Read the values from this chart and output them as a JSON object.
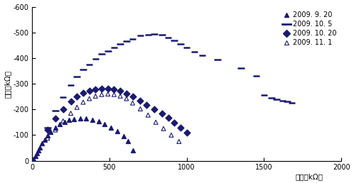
{
  "xlabel": "电阱（kΩ）",
  "ylabel": "电抗（kΩ）",
  "xlim": [
    0,
    2000
  ],
  "ylim": [
    0,
    -600
  ],
  "xticks": [
    0,
    500,
    1000,
    1500,
    2000
  ],
  "yticks": [
    0,
    -100,
    -200,
    -300,
    -400,
    -500,
    -600
  ],
  "background_color": "#ffffff",
  "color": "#1a1a6e",
  "series_9_20": {
    "label": "2009. 9. 20",
    "x": [
      10,
      20,
      30,
      40,
      50,
      65,
      80,
      100,
      120,
      150,
      180,
      210,
      240,
      270,
      310,
      350,
      390,
      430,
      470,
      510,
      550,
      590,
      620,
      650
    ],
    "y": [
      -8,
      -18,
      -28,
      -40,
      -52,
      -68,
      -82,
      -98,
      -112,
      -128,
      -142,
      -152,
      -158,
      -162,
      -165,
      -164,
      -160,
      -153,
      -143,
      -130,
      -115,
      -95,
      -75,
      -40
    ]
  },
  "series_10_5": {
    "label": "2009. 10. 5",
    "x": [
      100,
      150,
      200,
      250,
      290,
      330,
      370,
      410,
      450,
      490,
      530,
      570,
      610,
      650,
      700,
      750,
      790,
      840,
      880,
      920,
      960,
      1000,
      1050,
      1100,
      1200,
      1350,
      1450,
      1500,
      1550,
      1580,
      1620,
      1650,
      1680
    ],
    "y": [
      -130,
      -195,
      -248,
      -295,
      -328,
      -355,
      -375,
      -398,
      -415,
      -428,
      -440,
      -455,
      -466,
      -475,
      -488,
      -492,
      -495,
      -490,
      -480,
      -468,
      -455,
      -440,
      -425,
      -410,
      -395,
      -360,
      -330,
      -255,
      -245,
      -240,
      -235,
      -230,
      -225
    ]
  },
  "series_10_20": {
    "label": "2009. 10. 20",
    "x": [
      100,
      150,
      200,
      250,
      290,
      330,
      370,
      410,
      450,
      490,
      530,
      570,
      610,
      650,
      700,
      740,
      790,
      840,
      880,
      920,
      960,
      1000
    ],
    "y": [
      -120,
      -165,
      -200,
      -230,
      -250,
      -265,
      -272,
      -278,
      -280,
      -280,
      -278,
      -272,
      -262,
      -250,
      -235,
      -218,
      -200,
      -185,
      -168,
      -148,
      -128,
      -110
    ]
  },
  "series_11_1": {
    "label": "2009. 11. 1",
    "x": [
      100,
      150,
      200,
      250,
      290,
      330,
      370,
      410,
      450,
      490,
      530,
      570,
      610,
      650,
      700,
      750,
      800,
      850,
      900,
      950
    ],
    "y": [
      -88,
      -120,
      -155,
      -185,
      -208,
      -228,
      -242,
      -252,
      -258,
      -260,
      -258,
      -252,
      -242,
      -225,
      -202,
      -178,
      -150,
      -125,
      -100,
      -75
    ]
  }
}
